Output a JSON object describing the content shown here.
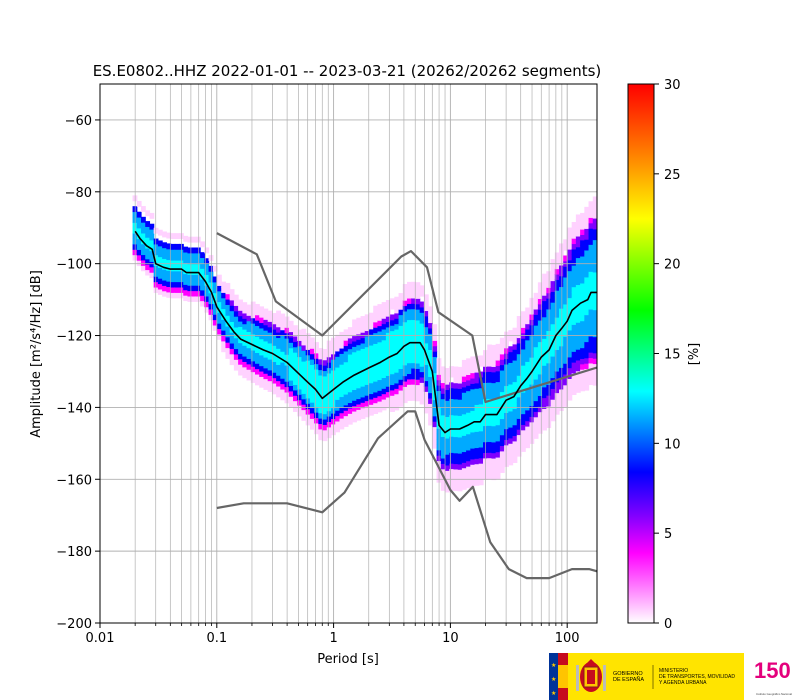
{
  "chart_data": {
    "type": "heatmap",
    "title": "ES.E0802..HHZ   2022-01-01 -- 2023-03-21  (20262/20262 segments)",
    "xlabel": "Period [s]",
    "ylabel": "Amplitude [m²/s⁴/Hz] [dB]",
    "x_scale": "log",
    "xlim": [
      0.01,
      180
    ],
    "ylim": [
      -200,
      -50
    ],
    "x_ticks": [
      0.01,
      0.1,
      1,
      10,
      100
    ],
    "x_tick_labels": [
      "0.01",
      "0.1",
      "1",
      "10",
      "100"
    ],
    "y_ticks": [
      -200,
      -180,
      -160,
      -140,
      -120,
      -100,
      -80,
      -60
    ],
    "y_tick_labels": [
      "−200",
      "−180",
      "−160",
      "−140",
      "−120",
      "−100",
      "−80",
      "−60"
    ],
    "grid": true,
    "colorbar": {
      "label": "[%]",
      "min": 0,
      "max": 30,
      "ticks": [
        0,
        5,
        10,
        15,
        20,
        25,
        30
      ],
      "tick_labels": [
        "0",
        "5",
        "10",
        "15",
        "20",
        "25",
        "30"
      ],
      "colormap": [
        "#ffffff",
        "#ff00ff",
        "#8000ff",
        "#0000ff",
        "#00ffff",
        "#00ff00",
        "#ffff00",
        "#ff8000",
        "#ff0000"
      ]
    },
    "series": [
      {
        "name": "mode",
        "color": "#000000",
        "points": [
          [
            0.02,
            -91
          ],
          [
            0.022,
            -93
          ],
          [
            0.025,
            -95
          ],
          [
            0.028,
            -96
          ],
          [
            0.03,
            -100
          ],
          [
            0.035,
            -101
          ],
          [
            0.04,
            -101.5
          ],
          [
            0.05,
            -101.5
          ],
          [
            0.055,
            -102.5
          ],
          [
            0.07,
            -102.5
          ],
          [
            0.08,
            -105
          ],
          [
            0.09,
            -108
          ],
          [
            0.1,
            -112
          ],
          [
            0.12,
            -116
          ],
          [
            0.14,
            -119
          ],
          [
            0.16,
            -121
          ],
          [
            0.2,
            -122.5
          ],
          [
            0.25,
            -124
          ],
          [
            0.3,
            -125
          ],
          [
            0.4,
            -127.5
          ],
          [
            0.5,
            -130.5
          ],
          [
            0.6,
            -133
          ],
          [
            0.7,
            -135
          ],
          [
            0.8,
            -137.5
          ],
          [
            1,
            -135
          ],
          [
            1.2,
            -133
          ],
          [
            1.5,
            -131
          ],
          [
            2,
            -129
          ],
          [
            2.5,
            -127.5
          ],
          [
            3,
            -126
          ],
          [
            3.5,
            -125
          ],
          [
            4,
            -123
          ],
          [
            4.5,
            -122
          ],
          [
            5.5,
            -122
          ],
          [
            6,
            -124
          ],
          [
            7,
            -130
          ],
          [
            8,
            -145
          ],
          [
            9,
            -147
          ],
          [
            10,
            -146
          ],
          [
            12,
            -146
          ],
          [
            14,
            -145
          ],
          [
            16,
            -144
          ],
          [
            18,
            -144
          ],
          [
            20,
            -142
          ],
          [
            25,
            -142
          ],
          [
            30,
            -138
          ],
          [
            35,
            -137
          ],
          [
            40,
            -134
          ],
          [
            45,
            -132
          ],
          [
            50,
            -130
          ],
          [
            60,
            -126
          ],
          [
            70,
            -124
          ],
          [
            80,
            -120
          ],
          [
            90,
            -118
          ],
          [
            100,
            -116
          ],
          [
            110,
            -113
          ],
          [
            130,
            -111
          ],
          [
            150,
            -110
          ],
          [
            160,
            -108
          ],
          [
            180,
            -108
          ]
        ]
      },
      {
        "name": "NHNM",
        "color": "#666666",
        "points": [
          [
            0.1,
            -168
          ],
          [
            0.17,
            -166.7
          ],
          [
            0.4,
            -166.7
          ],
          [
            0.8,
            -169.2
          ],
          [
            1.24,
            -163.7
          ],
          [
            2.4,
            -148.6
          ],
          [
            4.3,
            -141.1
          ],
          [
            5,
            -141.1
          ],
          [
            6,
            -149
          ],
          [
            10,
            -163
          ],
          [
            12,
            -166
          ],
          [
            15.6,
            -162.1
          ],
          [
            21.9,
            -177.5
          ],
          [
            31.6,
            -185
          ],
          [
            45,
            -187.5
          ],
          [
            70,
            -187.5
          ],
          [
            110,
            -185
          ],
          [
            154,
            -185
          ],
          [
            180,
            -185.6
          ]
        ]
      },
      {
        "name": "NLNM",
        "color": "#666666",
        "points": [
          [
            0.1,
            -91.5
          ],
          [
            0.22,
            -97.4
          ],
          [
            0.32,
            -110.5
          ],
          [
            0.8,
            -120
          ],
          [
            3.8,
            -98
          ],
          [
            4.6,
            -96.5
          ],
          [
            6.3,
            -101
          ],
          [
            7.9,
            -113.5
          ],
          [
            15.4,
            -120
          ],
          [
            20,
            -138.5
          ],
          [
            180,
            -128.9
          ]
        ]
      }
    ]
  },
  "footer": {
    "gov_label_1": "GOBIERNO",
    "gov_label_2": "DE ESPAÑA",
    "ministry_1": "MINISTERIO",
    "ministry_2": "DE TRANSPORTES, MOVILIDAD",
    "ministry_3": "Y AGENDA URBANA",
    "ign_mark": "150",
    "ign_text": "Instituto Geográfico Nacional",
    "flag_red": "#c60b1e",
    "flag_yellow": "#ffc400",
    "eu_blue": "#003399",
    "banner_yellow": "#ffe400"
  }
}
